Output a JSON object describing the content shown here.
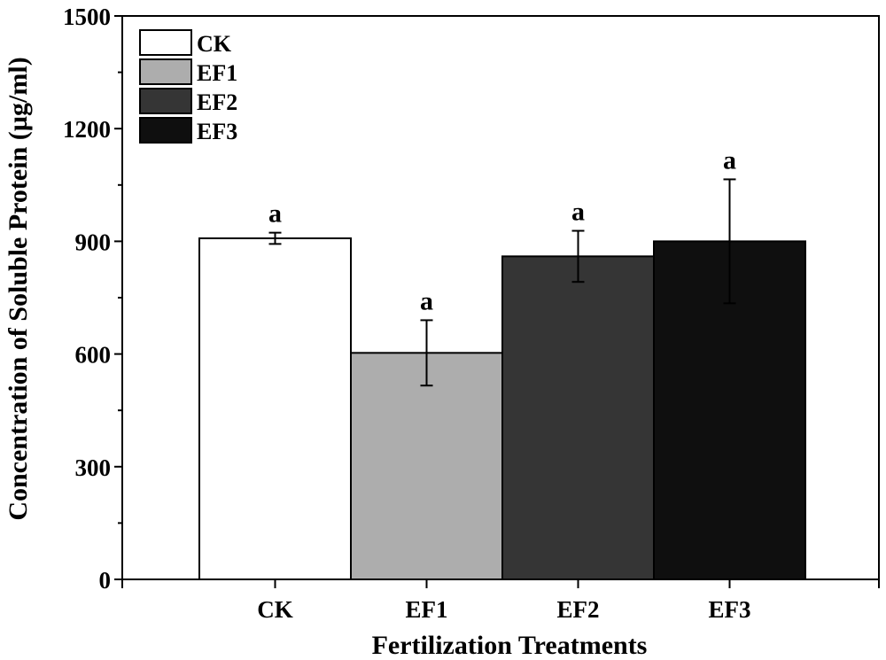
{
  "chart_data": {
    "type": "bar",
    "title": "",
    "xlabel": "Fertilization Treatments",
    "ylabel": "Concentration of Soluble Protein (µg/ml)",
    "ylim": [
      0,
      1500
    ],
    "yticks": [
      0,
      300,
      600,
      900,
      1200,
      1500
    ],
    "ytick_labels": [
      "0",
      "300",
      "600",
      "900",
      "1200",
      "1500"
    ],
    "categories": [
      "CK",
      "EF1",
      "EF2",
      "EF3"
    ],
    "values": [
      908,
      603,
      860,
      900
    ],
    "errors": [
      15,
      87,
      68,
      165
    ],
    "significance": [
      "a",
      "a",
      "a",
      "a"
    ],
    "colors": [
      "#ffffff",
      "#adadad",
      "#353535",
      "#0f0f0f"
    ],
    "legend": {
      "position": "top-left",
      "entries": [
        "CK",
        "EF1",
        "EF2",
        "EF3"
      ]
    },
    "grid": false
  }
}
